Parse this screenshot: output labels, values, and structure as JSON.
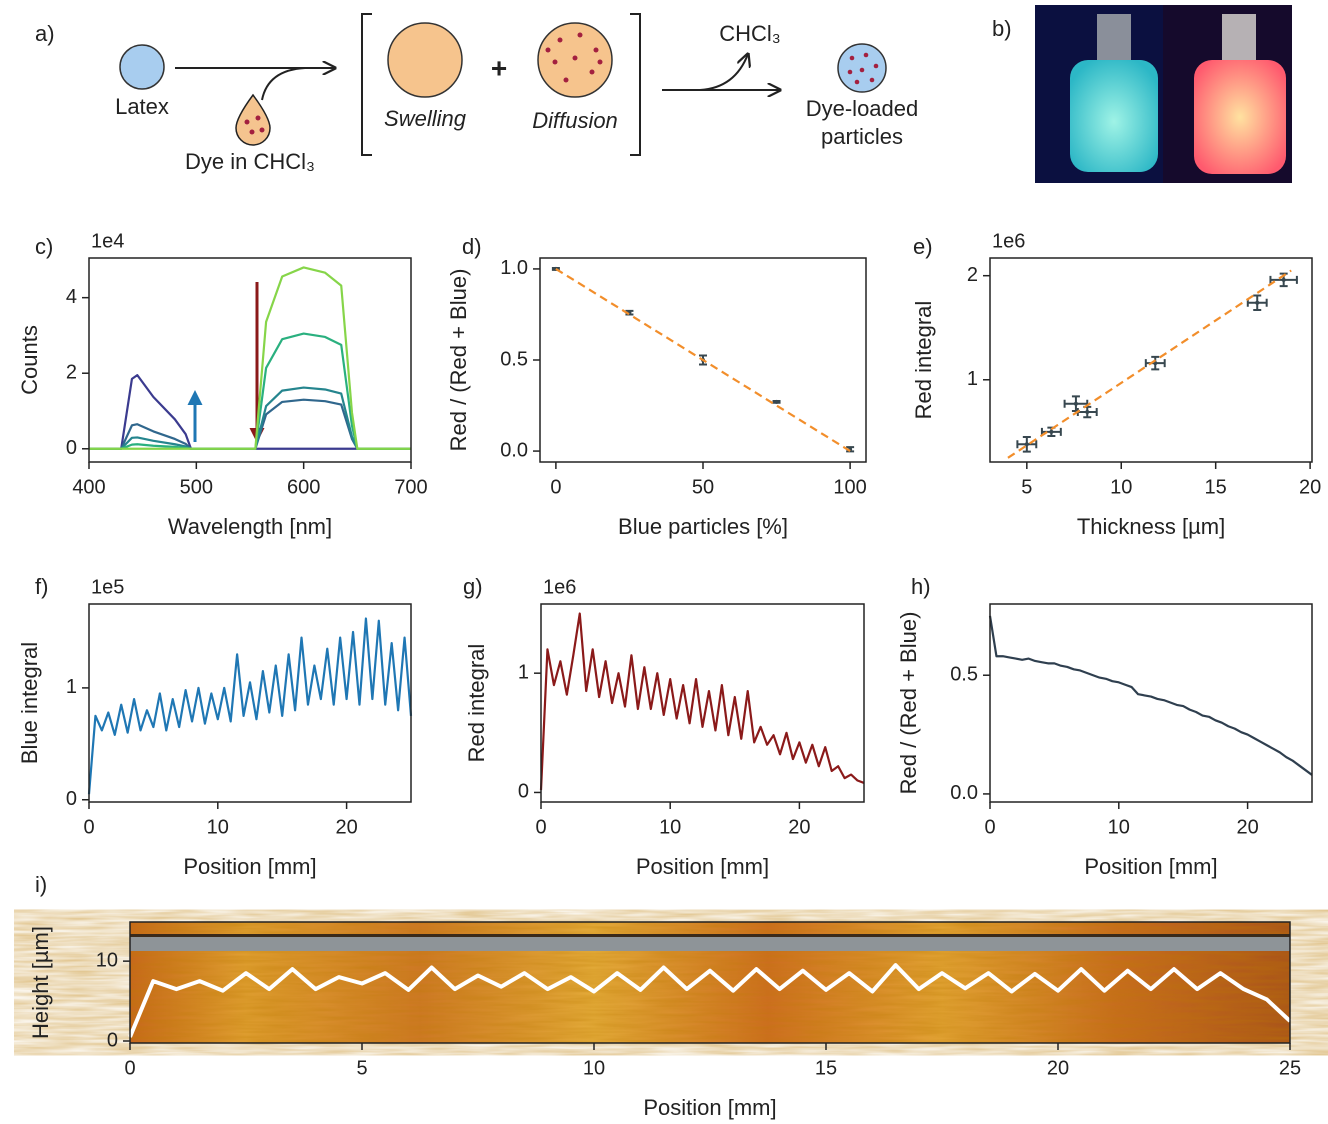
{
  "schematic": {
    "panel": "a)",
    "latex": "Latex",
    "dye": "Dye in CHCl₃",
    "swelling": "Swelling",
    "plus": "+",
    "diffusion": "Diffusion",
    "solvent": "CHCl₃",
    "product": [
      "Dye-loaded",
      "particles"
    ]
  },
  "photo": {
    "panel": "b)"
  },
  "chart_data": [
    {
      "panel": "c)",
      "type": "line",
      "offset": "1e4",
      "xlabel": "Wavelength [nm]",
      "ylabel": "Counts",
      "xlim": [
        400,
        700
      ],
      "ylim": [
        -0.35,
        5.05
      ],
      "xticks": [
        400,
        500,
        600,
        700
      ],
      "yticks": [
        0,
        2,
        4
      ],
      "x": [
        400,
        430,
        440,
        445,
        460,
        480,
        490,
        495,
        555,
        565,
        580,
        600,
        620,
        635,
        645,
        650,
        700
      ],
      "series": [
        {
          "color": "#3b3b8f",
          "values": [
            0,
            0,
            1.85,
            1.95,
            1.37,
            0.78,
            0.39,
            0,
            0,
            0,
            0,
            0,
            0,
            0,
            0,
            0,
            0
          ]
        },
        {
          "color": "#30678d",
          "values": [
            0,
            0,
            0.62,
            0.65,
            0.46,
            0.26,
            0.13,
            0,
            0,
            0.91,
            1.24,
            1.3,
            1.26,
            1.17,
            0.26,
            0,
            0
          ]
        },
        {
          "color": "#25858e",
          "values": [
            0,
            0,
            0.29,
            0.3,
            0.21,
            0.12,
            0.06,
            0,
            0,
            1.13,
            1.54,
            1.62,
            1.57,
            1.46,
            0.32,
            0,
            0
          ]
        },
        {
          "color": "#2ab07f",
          "values": [
            0,
            0,
            0.11,
            0.12,
            0.08,
            0.05,
            0.02,
            0,
            0,
            2.14,
            2.9,
            3.05,
            2.96,
            2.75,
            0.61,
            0,
            0
          ]
        },
        {
          "color": "#86d549",
          "values": [
            0,
            0,
            0,
            0,
            0,
            0,
            0,
            0,
            0,
            3.36,
            4.56,
            4.8,
            4.66,
            4.32,
            0.96,
            0,
            0
          ]
        }
      ]
    },
    {
      "panel": "d)",
      "type": "scatter",
      "xlabel": "Blue particles [%]",
      "ylabel": "Red / (Red + Blue)",
      "xlim": [
        -5.4,
        105.4
      ],
      "ylim": [
        -0.06,
        1.06
      ],
      "xticks": [
        0,
        50,
        100
      ],
      "yticks": [
        {
          "value": 0,
          "label": "0.0"
        },
        {
          "value": 0.5,
          "label": "0.5"
        },
        {
          "value": 1,
          "label": "1.0"
        }
      ],
      "series": [
        {
          "color": "#37474f",
          "x": [
            0,
            25,
            50,
            75,
            100
          ],
          "values": [
            1.0,
            0.76,
            0.5,
            0.27,
            0.01
          ],
          "yerr": [
            0.005,
            0.01,
            0.025,
            0.005,
            0.012
          ]
        },
        {
          "color": "#f28e2b",
          "linestyle": "dashed",
          "x": [
            0,
            100
          ],
          "values": [
            1.0,
            0.0
          ]
        }
      ]
    },
    {
      "panel": "e)",
      "type": "scatter",
      "offset": "1e6",
      "xlabel": "Thickness [µm]",
      "ylabel": "Red integral",
      "xlim": [
        3.05,
        20.1
      ],
      "ylim": [
        0.21,
        2.17
      ],
      "xticks": [
        5,
        10,
        15,
        20
      ],
      "yticks": [
        1,
        2
      ],
      "series": [
        {
          "color": "#37474f",
          "x": [
            5,
            6.3,
            7.6,
            8.2,
            11.8,
            17.2,
            18.6
          ],
          "values": [
            0.38,
            0.5,
            0.77,
            0.69,
            1.16,
            1.74,
            1.96
          ],
          "xerr": [
            0.5,
            0.5,
            0.6,
            0.5,
            0.5,
            0.5,
            0.7
          ],
          "yerr": [
            0.07,
            0.04,
            0.07,
            0.05,
            0.06,
            0.07,
            0.06
          ]
        },
        {
          "color": "#f28e2b",
          "linestyle": "dashed",
          "x": [
            4,
            19
          ],
          "values": [
            0.25,
            2.05
          ]
        }
      ]
    },
    {
      "panel": "f)",
      "type": "line",
      "offset": "1e5",
      "xlabel": "Position [mm]",
      "ylabel": "Blue integral",
      "xlim": [
        0,
        25
      ],
      "ylim": [
        -0.02,
        1.75
      ],
      "xticks": [
        0,
        10,
        20
      ],
      "yticks": [
        0,
        1
      ],
      "x": [
        0,
        0.5,
        1,
        1.5,
        2,
        2.5,
        3,
        3.5,
        4,
        4.5,
        5,
        5.5,
        6,
        6.5,
        7,
        7.5,
        8,
        8.5,
        9,
        9.5,
        10,
        10.5,
        11,
        11.5,
        12,
        12.5,
        13,
        13.5,
        14,
        14.5,
        15,
        15.5,
        16,
        16.5,
        17,
        17.5,
        18,
        18.5,
        19,
        19.5,
        20,
        20.5,
        21,
        21.5,
        22,
        22.5,
        23,
        23.5,
        24,
        24.5,
        25
      ],
      "series": [
        {
          "color": "#1f77b4",
          "values": [
            0.05,
            0.75,
            0.62,
            0.78,
            0.58,
            0.85,
            0.6,
            0.9,
            0.62,
            0.8,
            0.65,
            0.95,
            0.62,
            0.9,
            0.65,
            0.98,
            0.7,
            1.0,
            0.68,
            0.95,
            0.72,
            1.0,
            0.7,
            1.3,
            0.75,
            1.05,
            0.72,
            1.15,
            0.78,
            1.2,
            0.75,
            1.3,
            0.8,
            1.45,
            0.85,
            1.2,
            0.9,
            1.35,
            0.85,
            1.45,
            0.9,
            1.5,
            0.85,
            1.62,
            0.9,
            1.6,
            0.85,
            1.4,
            0.8,
            1.45,
            0.75
          ]
        }
      ]
    },
    {
      "panel": "g)",
      "type": "line",
      "offset": "1e6",
      "xlabel": "Position [mm]",
      "ylabel": "Red integral",
      "xlim": [
        0,
        25
      ],
      "ylim": [
        -0.08,
        1.58
      ],
      "xticks": [
        0,
        10,
        20
      ],
      "yticks": [
        0,
        1
      ],
      "x": [
        0,
        0.5,
        1,
        1.5,
        2,
        2.5,
        3,
        3.5,
        4,
        4.5,
        5,
        5.5,
        6,
        6.5,
        7,
        7.5,
        8,
        8.5,
        9,
        9.5,
        10,
        10.5,
        11,
        11.5,
        12,
        12.5,
        13,
        13.5,
        14,
        14.5,
        15,
        15.5,
        16,
        16.5,
        17,
        17.5,
        18,
        18.5,
        19,
        19.5,
        20,
        20.5,
        21,
        21.5,
        22,
        22.5,
        23,
        23.5,
        24,
        24.5,
        25
      ],
      "series": [
        {
          "color": "#8b1a1a",
          "values": [
            0.02,
            1.2,
            0.9,
            1.1,
            0.82,
            1.15,
            1.5,
            0.85,
            1.2,
            0.8,
            1.1,
            0.75,
            1.0,
            0.72,
            1.15,
            0.7,
            1.05,
            0.7,
            1.0,
            0.65,
            0.95,
            0.62,
            0.9,
            0.58,
            0.95,
            0.55,
            0.85,
            0.52,
            0.9,
            0.48,
            0.8,
            0.45,
            0.85,
            0.42,
            0.55,
            0.4,
            0.48,
            0.32,
            0.5,
            0.28,
            0.42,
            0.25,
            0.4,
            0.22,
            0.38,
            0.18,
            0.22,
            0.12,
            0.15,
            0.1,
            0.08
          ]
        }
      ]
    },
    {
      "panel": "h)",
      "type": "line",
      "xlabel": "Position [mm]",
      "ylabel": "Red / (Red + Blue)",
      "xlim": [
        0,
        25
      ],
      "ylim": [
        -0.034,
        0.8
      ],
      "xticks": [
        0,
        10,
        20
      ],
      "yticks": [
        {
          "value": 0,
          "label": "0.0"
        },
        {
          "value": 0.5,
          "label": "0.5"
        }
      ],
      "x": [
        0,
        0.5,
        1,
        1.5,
        2,
        2.5,
        3,
        3.5,
        4,
        4.5,
        5,
        5.5,
        6,
        6.5,
        7,
        7.5,
        8,
        8.5,
        9,
        9.5,
        10,
        10.5,
        11,
        11.5,
        12,
        12.5,
        13,
        13.5,
        14,
        14.5,
        15,
        15.5,
        16,
        16.5,
        17,
        17.5,
        18,
        18.5,
        19,
        19.5,
        20,
        20.5,
        21,
        21.5,
        22,
        22.5,
        23,
        23.5,
        24,
        24.5,
        25
      ],
      "series": [
        {
          "color": "#2f3f4f",
          "values": [
            0.75,
            0.58,
            0.58,
            0.575,
            0.57,
            0.565,
            0.57,
            0.56,
            0.555,
            0.55,
            0.55,
            0.54,
            0.535,
            0.525,
            0.52,
            0.51,
            0.5,
            0.49,
            0.485,
            0.475,
            0.47,
            0.46,
            0.45,
            0.42,
            0.415,
            0.41,
            0.4,
            0.395,
            0.385,
            0.375,
            0.37,
            0.355,
            0.345,
            0.33,
            0.325,
            0.31,
            0.3,
            0.285,
            0.275,
            0.26,
            0.25,
            0.235,
            0.22,
            0.205,
            0.19,
            0.175,
            0.155,
            0.14,
            0.12,
            0.1,
            0.08
          ]
        }
      ]
    },
    {
      "panel": "i)",
      "type": "line",
      "xlabel": "Position [mm]",
      "ylabel": "Height [µm]",
      "xlim": [
        0,
        25
      ],
      "ylim": [
        -0.25,
        14.9
      ],
      "xticks": [
        0,
        5,
        10,
        15,
        20,
        25
      ],
      "yticks": [
        0,
        10
      ],
      "x": [
        0,
        0.5,
        1,
        1.5,
        2,
        2.5,
        3,
        3.5,
        4,
        4.5,
        5,
        5.5,
        6,
        6.5,
        7,
        7.5,
        8,
        8.5,
        9,
        9.5,
        10,
        10.5,
        11,
        11.5,
        12,
        12.5,
        13,
        13.5,
        14,
        14.5,
        15,
        15.5,
        16,
        16.5,
        17,
        17.5,
        18,
        18.5,
        19,
        19.5,
        20,
        20.5,
        21,
        21.5,
        22,
        22.5,
        23,
        23.5,
        24,
        24.5,
        25
      ],
      "series": [
        {
          "color": "#ffffff",
          "values": [
            0.5,
            7.5,
            6.5,
            7.5,
            6.3,
            8.5,
            6.5,
            9,
            6.5,
            8,
            7.2,
            8.5,
            6.4,
            9.2,
            6.5,
            8.2,
            6.8,
            8.5,
            6.5,
            8,
            6.2,
            8.5,
            6.4,
            9.2,
            6.5,
            8.8,
            6.3,
            9,
            6.5,
            8.8,
            6.4,
            8.5,
            6.2,
            9.5,
            6.5,
            8.5,
            6.6,
            8.5,
            6.2,
            8.4,
            6.3,
            9,
            6.3,
            8.8,
            6.5,
            9,
            6.5,
            8.5,
            6.5,
            5.2,
            2.5
          ]
        }
      ]
    }
  ]
}
